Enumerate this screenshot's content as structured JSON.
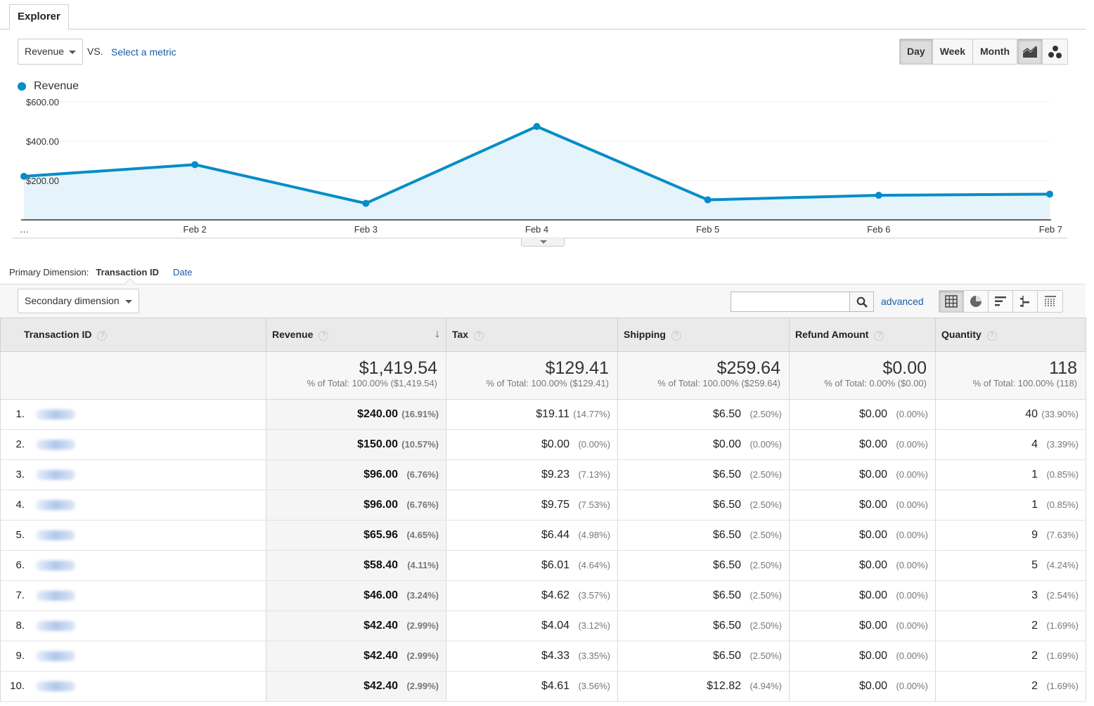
{
  "tabs": [
    {
      "label": "Explorer"
    }
  ],
  "metric": {
    "selected": "Revenue",
    "vs": "VS.",
    "select_metric": "Select a metric"
  },
  "period": {
    "day": "Day",
    "week": "Week",
    "month": "Month"
  },
  "legend": {
    "label": "Revenue",
    "color": "#058dc7"
  },
  "chart_data": {
    "type": "area",
    "title": "",
    "series": [
      {
        "name": "Revenue",
        "values": [
          221.4,
          281.0,
          84.0,
          475.0,
          102.0,
          125.0,
          131.0
        ]
      }
    ],
    "x_labels": [
      "…",
      "Feb 2",
      "Feb 3",
      "Feb 4",
      "Feb 5",
      "Feb 6",
      "Feb 7"
    ],
    "y_ticks": [
      {
        "value": 200,
        "label": "$200.00"
      },
      {
        "value": 400,
        "label": "$400.00"
      },
      {
        "value": 600,
        "label": "$600.00"
      }
    ],
    "ylim": [
      0,
      600
    ],
    "line_color": "#058dc7",
    "fill_color": "#e5f3fa"
  },
  "dimension": {
    "label": "Primary Dimension:",
    "active": "Transaction ID",
    "other": "Date",
    "secondary": "Secondary dimension"
  },
  "search": {
    "placeholder": "",
    "advanced": "advanced"
  },
  "table": {
    "headers": {
      "id": "Transaction ID",
      "revenue": "Revenue",
      "tax": "Tax",
      "shipping": "Shipping",
      "refund": "Refund Amount",
      "quantity": "Quantity"
    },
    "totals": {
      "revenue": {
        "value": "$1,419.54",
        "sub": "% of Total: 100.00% ($1,419.54)"
      },
      "tax": {
        "value": "$129.41",
        "sub": "% of Total: 100.00% ($129.41)"
      },
      "shipping": {
        "value": "$259.64",
        "sub": "% of Total: 100.00% ($259.64)"
      },
      "refund": {
        "value": "$0.00",
        "sub": "% of Total: 0.00% ($0.00)"
      },
      "quantity": {
        "value": "118",
        "sub": "% of Total: 100.00% (118)"
      }
    },
    "rows": [
      {
        "num": "1.",
        "revenue": "$240.00",
        "revenue_pct": "(16.91%)",
        "tax": "$19.11",
        "tax_pct": "(14.77%)",
        "shipping": "$6.50",
        "shipping_pct": "(2.50%)",
        "refund": "$0.00",
        "refund_pct": "(0.00%)",
        "quantity": "40",
        "quantity_pct": "(33.90%)"
      },
      {
        "num": "2.",
        "revenue": "$150.00",
        "revenue_pct": "(10.57%)",
        "tax": "$0.00",
        "tax_pct": "(0.00%)",
        "shipping": "$0.00",
        "shipping_pct": "(0.00%)",
        "refund": "$0.00",
        "refund_pct": "(0.00%)",
        "quantity": "4",
        "quantity_pct": "(3.39%)"
      },
      {
        "num": "3.",
        "revenue": "$96.00",
        "revenue_pct": "(6.76%)",
        "tax": "$9.23",
        "tax_pct": "(7.13%)",
        "shipping": "$6.50",
        "shipping_pct": "(2.50%)",
        "refund": "$0.00",
        "refund_pct": "(0.00%)",
        "quantity": "1",
        "quantity_pct": "(0.85%)"
      },
      {
        "num": "4.",
        "revenue": "$96.00",
        "revenue_pct": "(6.76%)",
        "tax": "$9.75",
        "tax_pct": "(7.53%)",
        "shipping": "$6.50",
        "shipping_pct": "(2.50%)",
        "refund": "$0.00",
        "refund_pct": "(0.00%)",
        "quantity": "1",
        "quantity_pct": "(0.85%)"
      },
      {
        "num": "5.",
        "revenue": "$65.96",
        "revenue_pct": "(4.65%)",
        "tax": "$6.44",
        "tax_pct": "(4.98%)",
        "shipping": "$6.50",
        "shipping_pct": "(2.50%)",
        "refund": "$0.00",
        "refund_pct": "(0.00%)",
        "quantity": "9",
        "quantity_pct": "(7.63%)"
      },
      {
        "num": "6.",
        "revenue": "$58.40",
        "revenue_pct": "(4.11%)",
        "tax": "$6.01",
        "tax_pct": "(4.64%)",
        "shipping": "$6.50",
        "shipping_pct": "(2.50%)",
        "refund": "$0.00",
        "refund_pct": "(0.00%)",
        "quantity": "5",
        "quantity_pct": "(4.24%)"
      },
      {
        "num": "7.",
        "revenue": "$46.00",
        "revenue_pct": "(3.24%)",
        "tax": "$4.62",
        "tax_pct": "(3.57%)",
        "shipping": "$6.50",
        "shipping_pct": "(2.50%)",
        "refund": "$0.00",
        "refund_pct": "(0.00%)",
        "quantity": "3",
        "quantity_pct": "(2.54%)"
      },
      {
        "num": "8.",
        "revenue": "$42.40",
        "revenue_pct": "(2.99%)",
        "tax": "$4.04",
        "tax_pct": "(3.12%)",
        "shipping": "$6.50",
        "shipping_pct": "(2.50%)",
        "refund": "$0.00",
        "refund_pct": "(0.00%)",
        "quantity": "2",
        "quantity_pct": "(1.69%)"
      },
      {
        "num": "9.",
        "revenue": "$42.40",
        "revenue_pct": "(2.99%)",
        "tax": "$4.33",
        "tax_pct": "(3.35%)",
        "shipping": "$6.50",
        "shipping_pct": "(2.50%)",
        "refund": "$0.00",
        "refund_pct": "(0.00%)",
        "quantity": "2",
        "quantity_pct": "(1.69%)"
      },
      {
        "num": "10.",
        "revenue": "$42.40",
        "revenue_pct": "(2.99%)",
        "tax": "$4.61",
        "tax_pct": "(3.56%)",
        "shipping": "$12.82",
        "shipping_pct": "(4.94%)",
        "refund": "$0.00",
        "refund_pct": "(0.00%)",
        "quantity": "2",
        "quantity_pct": "(1.69%)"
      }
    ]
  }
}
